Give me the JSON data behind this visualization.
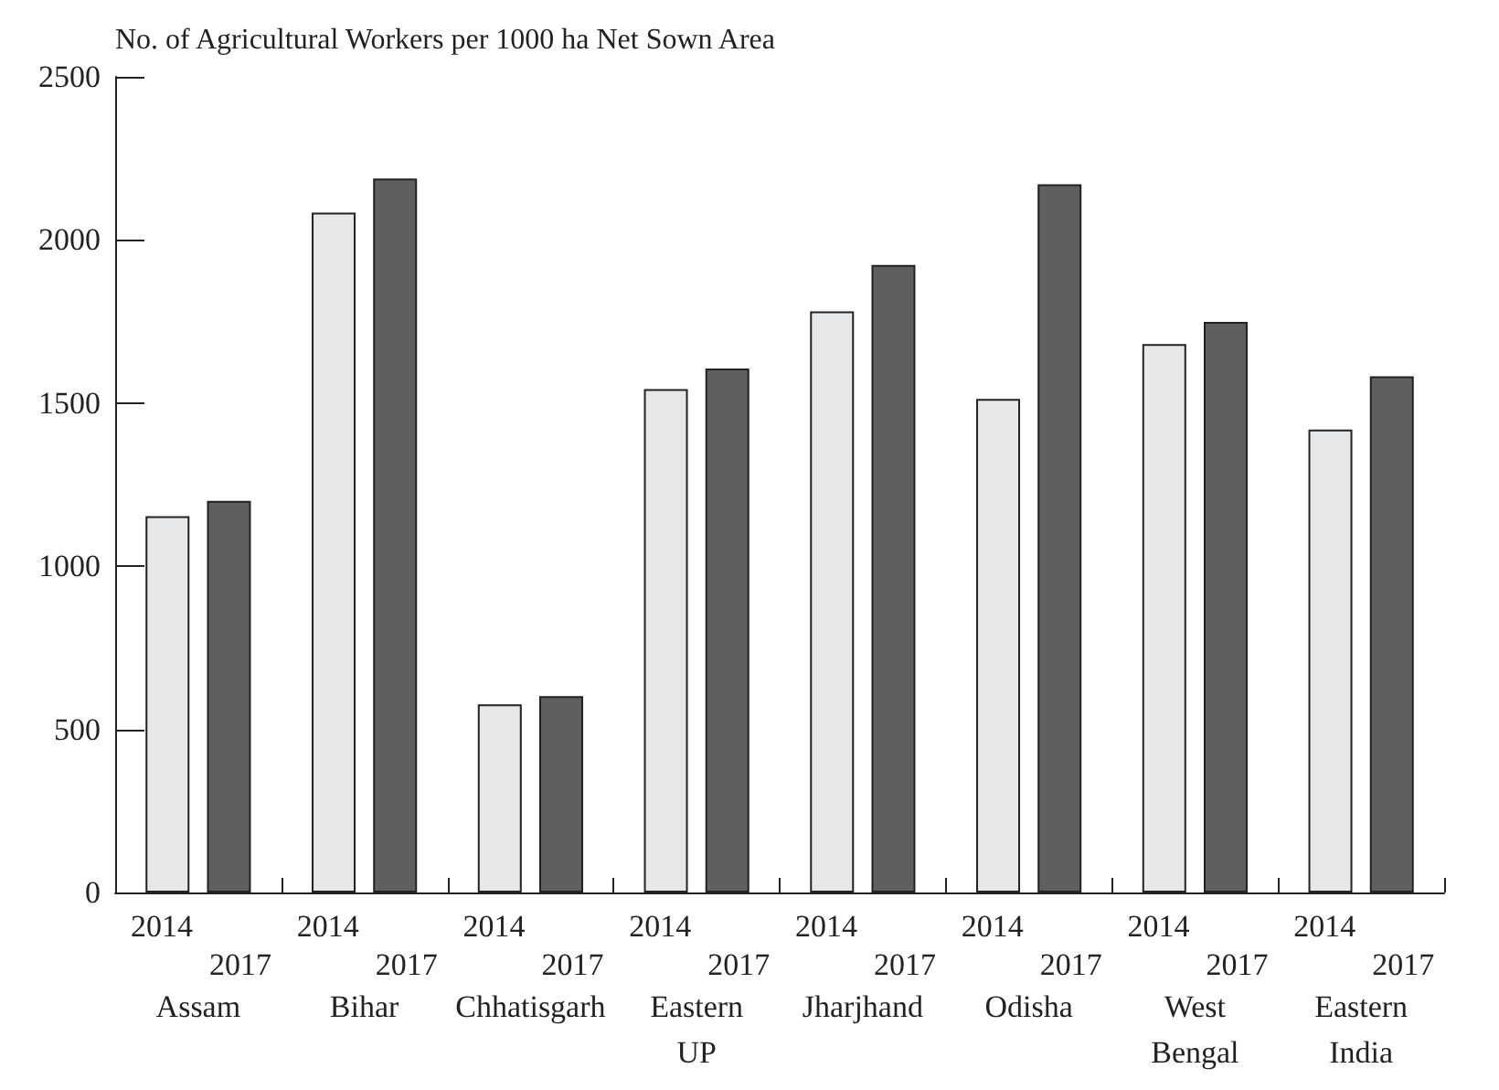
{
  "chart_data": {
    "type": "bar",
    "ylabel": "No. of Agricultural Workers per 1000 ha Net Sown Area",
    "categories": [
      "Assam",
      "Bihar",
      "Chhatisgarh",
      "Eastern UP",
      "Jharjhand",
      "Odisha",
      "West Bengal",
      "Eastern India"
    ],
    "series": [
      {
        "name": "2014",
        "color": "#e6e7e9",
        "values": [
          1153,
          2084,
          577,
          1543,
          1781,
          1513,
          1681,
          1419
        ]
      },
      {
        "name": "2017",
        "color": "#5f5f61",
        "values": [
          1200,
          2188,
          602,
          1606,
          1923,
          2171,
          1749,
          1582
        ]
      }
    ],
    "ylim": [
      0,
      2500
    ],
    "yticks": [
      0,
      500,
      1000,
      1500,
      2000,
      2500
    ],
    "grid": false
  }
}
